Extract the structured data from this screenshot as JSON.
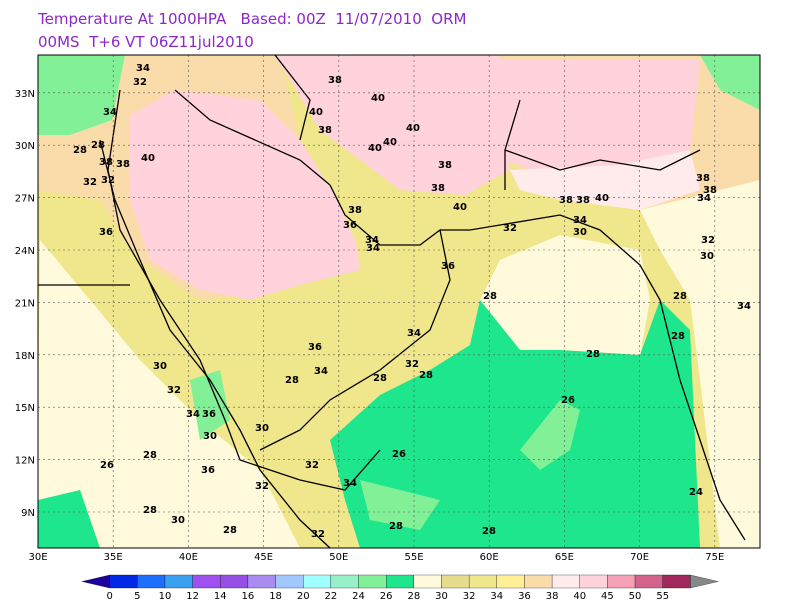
{
  "header": {
    "line1": "Temperature At 1000HPA   Based: 00Z  11/07/2010  ORM",
    "line2": "00MS  T+6 VT 06Z11jul2010"
  },
  "map": {
    "lon_labels": [
      "30E",
      "35E",
      "40E",
      "45E",
      "50E",
      "55E",
      "60E",
      "65E",
      "70E",
      "75E"
    ],
    "lat_labels": [
      "9N",
      "12N",
      "15N",
      "18N",
      "21N",
      "24N",
      "27N",
      "30N",
      "33N"
    ],
    "contour_labels": [
      38,
      40,
      40,
      40,
      38,
      40,
      40,
      38,
      36,
      38,
      34,
      28,
      32,
      32,
      40,
      38,
      38,
      34,
      32,
      34,
      36,
      40,
      38,
      38,
      38,
      40,
      34,
      30,
      32,
      30,
      32,
      38,
      38,
      34,
      36,
      34,
      28,
      34,
      28,
      34,
      36,
      28,
      32,
      28,
      26,
      28,
      26,
      28,
      28,
      32,
      34,
      36,
      32,
      30,
      36,
      34,
      30,
      32,
      30,
      28,
      26,
      28,
      28,
      24,
      28,
      30,
      32,
      28,
      34,
      28
    ],
    "colorbar": {
      "levels": [
        0,
        5,
        10,
        12,
        14,
        16,
        18,
        20,
        22,
        24,
        26,
        28,
        30,
        32,
        34,
        36,
        38,
        40,
        45,
        50,
        55
      ],
      "colors": [
        "#1e00a0",
        "#0028e6",
        "#1e6eff",
        "#3ca0f0",
        "#a050f0",
        "#9650e6",
        "#a98cf0",
        "#a0c8ff",
        "#a0ffff",
        "#96f0c8",
        "#82f096",
        "#1ee68c",
        "#fffadc",
        "#e6dc8c",
        "#f0e68c",
        "#fff096",
        "#fadcaa",
        "#ffebeb",
        "#ffd2dc",
        "#f5a0b4",
        "#d2648c",
        "#a0285a",
        "#888888"
      ]
    }
  }
}
